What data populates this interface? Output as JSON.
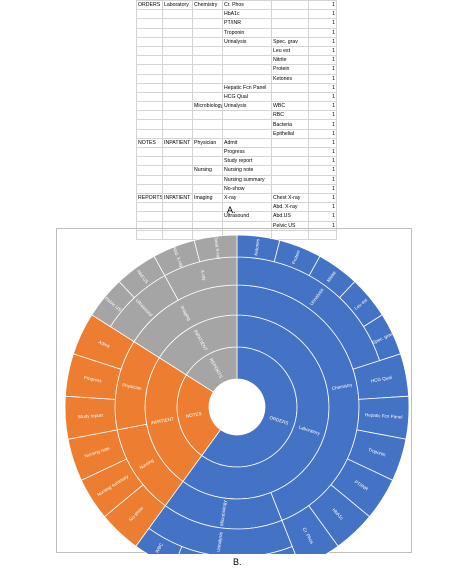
{
  "table": {
    "rows": [
      [
        "ORDERS",
        "Laboratory",
        "Chemistry",
        "Cr. Phos",
        "",
        "1"
      ],
      [
        "",
        "",
        "",
        "HbA1c",
        "",
        "1"
      ],
      [
        "",
        "",
        "",
        "PT/INR",
        "",
        "1"
      ],
      [
        "",
        "",
        "",
        "Troponin",
        "",
        "1"
      ],
      [
        "",
        "",
        "",
        "Urinalysis",
        "Spec. grav",
        "1"
      ],
      [
        "",
        "",
        "",
        "",
        "Leu est",
        "1"
      ],
      [
        "",
        "",
        "",
        "",
        "Nitrite",
        "1"
      ],
      [
        "",
        "",
        "",
        "",
        "Protein",
        "1"
      ],
      [
        "",
        "",
        "",
        "",
        "Ketones",
        "1"
      ],
      [
        "",
        "",
        "",
        "Hepatic Fcn Panel",
        "",
        "1"
      ],
      [
        "",
        "",
        "",
        "HCG Qual",
        "",
        "1"
      ],
      [
        "",
        "",
        "Microbiology",
        "Urinalysis",
        "WBC",
        "1"
      ],
      [
        "",
        "",
        "",
        "",
        "RBC",
        "1"
      ],
      [
        "",
        "",
        "",
        "",
        "Bacteria",
        "1"
      ],
      [
        "",
        "",
        "",
        "",
        "Epithelial",
        "1"
      ],
      [
        "NOTES",
        "INPATIENT",
        "Physician",
        "Admit",
        "",
        "1"
      ],
      [
        "",
        "",
        "",
        "Progress",
        "",
        "1"
      ],
      [
        "",
        "",
        "",
        "Study report",
        "",
        "1"
      ],
      [
        "",
        "",
        "Nursing",
        "Nursing note",
        "",
        "1"
      ],
      [
        "",
        "",
        "",
        "Nursing summary",
        "",
        "1"
      ],
      [
        "",
        "",
        "",
        "No-show",
        "",
        "1"
      ],
      [
        "REPORTS",
        "INPATIENT",
        "Imaging",
        "X-ray",
        "Chest X-ray",
        "1"
      ],
      [
        "",
        "",
        "",
        "",
        "Abd. X-ray",
        "1"
      ],
      [
        "",
        "",
        "",
        "Ultrasound",
        "Abd.US",
        "1"
      ],
      [
        "",
        "",
        "",
        "",
        "Pelvic US",
        "1"
      ],
      [
        "",
        "",
        "",
        "",
        "",
        ""
      ]
    ]
  },
  "captions": {
    "a": "A.",
    "b": "B."
  },
  "chart_data": {
    "type": "sunburst",
    "colors": {
      "ORDERS": "#4472c4",
      "NOTES": "#ed7d31",
      "REPORTS": "#a5a5a5"
    },
    "tree": [
      {
        "name": "ORDERS",
        "children": [
          {
            "name": "Laboratory",
            "children": [
              {
                "name": "Chemistry",
                "children": [
                  {
                    "name": "Urinalysis",
                    "children": [
                      {
                        "name": "Ketones",
                        "value": 1
                      },
                      {
                        "name": "Protein",
                        "value": 1
                      },
                      {
                        "name": "Nitrite",
                        "value": 1
                      },
                      {
                        "name": "Leu est",
                        "value": 1
                      },
                      {
                        "name": "Spec. grav",
                        "value": 1
                      }
                    ]
                  },
                  {
                    "name": "HCG Qual",
                    "value": 1
                  },
                  {
                    "name": "Hepatic Fcn Panel",
                    "value": 1
                  },
                  {
                    "name": "Troponin",
                    "value": 1
                  },
                  {
                    "name": "PT/INR",
                    "value": 1
                  },
                  {
                    "name": "HbA1c",
                    "value": 1
                  },
                  {
                    "name": "Cr. Phos",
                    "value": 1
                  }
                ]
              },
              {
                "name": "Microbiology",
                "children": [
                  {
                    "name": "Urinalysis",
                    "children": [
                      {
                        "name": "Epithelial",
                        "value": 1
                      },
                      {
                        "name": "Bacteria",
                        "value": 1
                      },
                      {
                        "name": "RBC",
                        "value": 1
                      },
                      {
                        "name": "WBC",
                        "value": 1
                      }
                    ]
                  }
                ]
              }
            ]
          }
        ]
      },
      {
        "name": "NOTES",
        "children": [
          {
            "name": "INPATIENT",
            "children": [
              {
                "name": "Nursing",
                "children": [
                  {
                    "name": "No-show",
                    "value": 1
                  },
                  {
                    "name": "Nursing summary",
                    "value": 1
                  },
                  {
                    "name": "Nursing note",
                    "value": 1
                  }
                ]
              },
              {
                "name": "Physician",
                "children": [
                  {
                    "name": "Study report",
                    "value": 1
                  },
                  {
                    "name": "Progress",
                    "value": 1
                  },
                  {
                    "name": "Admit",
                    "value": 1
                  }
                ]
              }
            ]
          }
        ]
      },
      {
        "name": "REPORTS",
        "children": [
          {
            "name": "INPATIENT",
            "children": [
              {
                "name": "Imaging",
                "children": [
                  {
                    "name": "Ultrasound",
                    "children": [
                      {
                        "name": "Pelvic US",
                        "value": 1
                      },
                      {
                        "name": "Abd.US",
                        "value": 1
                      }
                    ]
                  },
                  {
                    "name": "X-ray",
                    "children": [
                      {
                        "name": "Abd. X-ray",
                        "value": 1
                      },
                      {
                        "name": "Chest X-ray",
                        "value": 1
                      }
                    ]
                  }
                ]
              }
            ]
          }
        ]
      }
    ]
  }
}
